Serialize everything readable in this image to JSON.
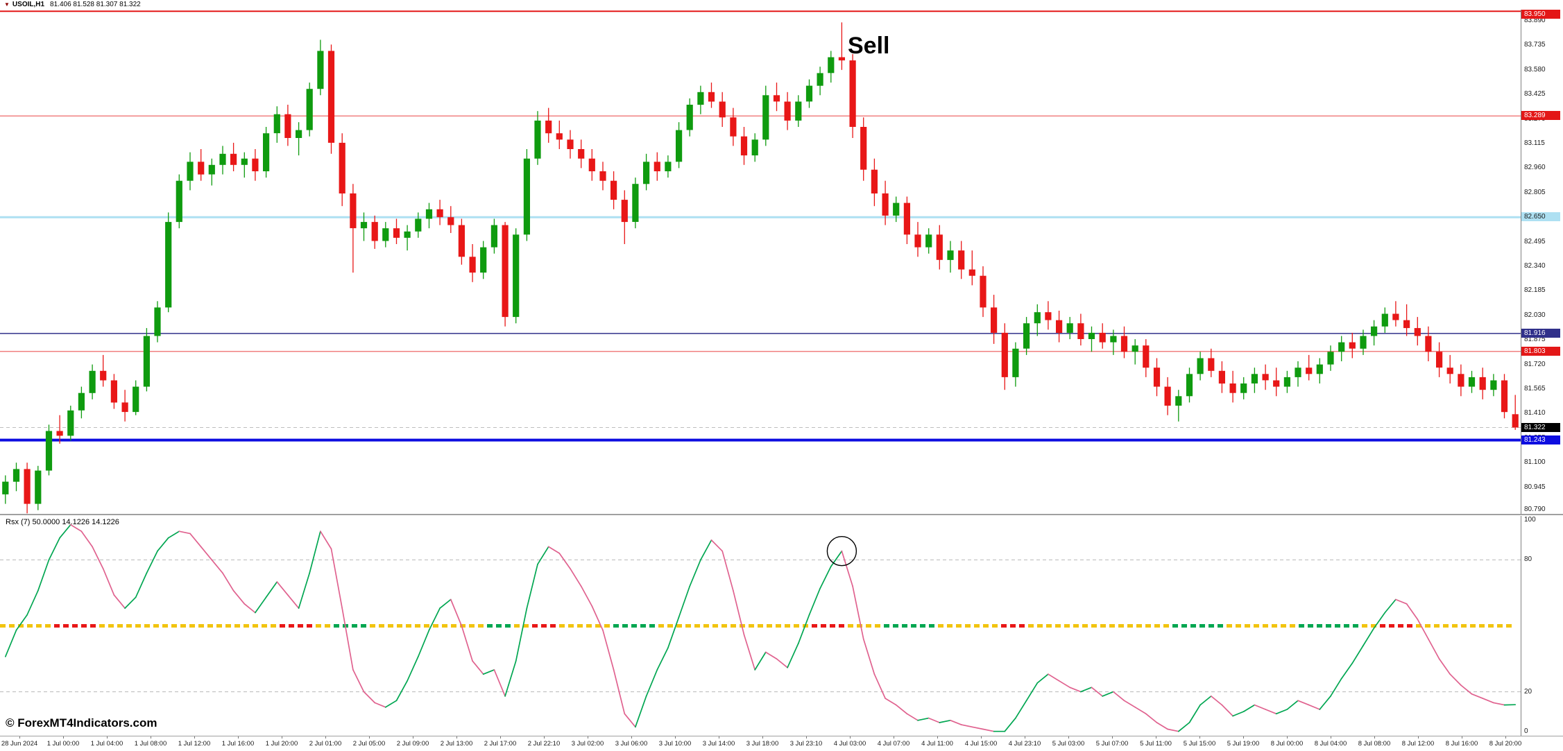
{
  "window": {
    "dropdown_icon": "▼",
    "symbol": "USOIL,H1",
    "ohlc": "81.406 81.528 81.307 81.322"
  },
  "annotations": {
    "sell": "Sell",
    "copyright": "© ForexMT4Indicators.com"
  },
  "colors": {
    "background": "#ffffff",
    "bull": "#0f9b0f",
    "bear": "#e81717",
    "separator": "#a0a0a0",
    "level_dash": "#b8b8b8",
    "axis_text": "#1a1a1a"
  },
  "chart_data": [
    {
      "id": "price",
      "type": "candlestick",
      "title": "USOIL,H1",
      "ylim": [
        80.777,
        83.96
      ],
      "y_ticks": [
        83.89,
        83.735,
        83.58,
        83.425,
        83.27,
        83.115,
        82.96,
        82.805,
        82.65,
        82.495,
        82.34,
        82.185,
        82.03,
        81.875,
        81.72,
        81.565,
        81.41,
        81.255,
        81.1,
        80.945,
        80.79
      ],
      "h_lines": [
        {
          "price": 83.95,
          "color": "#e31717",
          "width": 2,
          "label": "83.950",
          "label_bg": "#e31717",
          "label_fg": "#ffffff"
        },
        {
          "price": 83.289,
          "color": "#f08080",
          "width": 1.5,
          "label": "83.289",
          "label_bg": "#e31717",
          "label_fg": "#ffffff"
        },
        {
          "price": 82.65,
          "color": "#aee0f2",
          "width": 3,
          "label": "82.650",
          "label_bg": "#aee0f2",
          "label_fg": "#1a1a1a"
        },
        {
          "price": 81.916,
          "color": "#30308a",
          "width": 1.5,
          "label": "81.916",
          "label_bg": "#30308a",
          "label_fg": "#ffffff"
        },
        {
          "price": 81.803,
          "color": "#f08080",
          "width": 1.5,
          "label": "81.803",
          "label_bg": "#e31717",
          "label_fg": "#ffffff"
        },
        {
          "price": 81.243,
          "color": "#0d0de0",
          "width": 4,
          "label": "81.243",
          "label_bg": "#0d0de0",
          "label_fg": "#ffffff"
        }
      ],
      "current_price": {
        "value": 81.322,
        "label": "81.322",
        "label_bg": "#000000",
        "label_fg": "#ffffff"
      },
      "x_labels": [
        "28 Jun 2024",
        "1 Jul 00:00",
        "1 Jul 04:00",
        "1 Jul 08:00",
        "1 Jul 12:00",
        "1 Jul 16:00",
        "1 Jul 20:00",
        "2 Jul 01:00",
        "2 Jul 05:00",
        "2 Jul 09:00",
        "2 Jul 13:00",
        "2 Jul 17:00",
        "2 Jul 22:10",
        "3 Jul 02:00",
        "3 Jul 06:00",
        "3 Jul 10:00",
        "3 Jul 14:00",
        "3 Jul 18:00",
        "3 Jul 23:10",
        "4 Jul 03:00",
        "4 Jul 07:00",
        "4 Jul 11:00",
        "4 Jul 15:00",
        "4 Jul 23:10",
        "5 Jul 03:00",
        "5 Jul 07:00",
        "5 Jul 11:00",
        "5 Jul 15:00",
        "5 Jul 19:00",
        "8 Jul 00:00",
        "8 Jul 04:00",
        "8 Jul 08:00",
        "8 Jul 12:00",
        "8 Jul 16:00",
        "8 Jul 20:00"
      ],
      "candles": [
        [
          80.9,
          81.02,
          80.84,
          80.98
        ],
        [
          80.98,
          81.1,
          80.92,
          81.06
        ],
        [
          81.06,
          81.1,
          80.78,
          80.84
        ],
        [
          80.84,
          81.08,
          80.8,
          81.05
        ],
        [
          81.05,
          81.34,
          81.02,
          81.3
        ],
        [
          81.3,
          81.4,
          81.22,
          81.27
        ],
        [
          81.27,
          81.46,
          81.24,
          81.43
        ],
        [
          81.43,
          81.58,
          81.38,
          81.54
        ],
        [
          81.54,
          81.72,
          81.5,
          81.68
        ],
        [
          81.68,
          81.78,
          81.58,
          81.62
        ],
        [
          81.62,
          81.66,
          81.44,
          81.48
        ],
        [
          81.48,
          81.56,
          81.36,
          81.42
        ],
        [
          81.42,
          81.62,
          81.4,
          81.58
        ],
        [
          81.58,
          81.95,
          81.55,
          81.9
        ],
        [
          81.9,
          82.12,
          81.86,
          82.08
        ],
        [
          82.08,
          82.68,
          82.05,
          82.62
        ],
        [
          82.62,
          82.92,
          82.58,
          82.88
        ],
        [
          82.88,
          83.06,
          82.82,
          83.0
        ],
        [
          83.0,
          83.08,
          82.88,
          82.92
        ],
        [
          82.92,
          83.02,
          82.85,
          82.98
        ],
        [
          82.98,
          83.1,
          82.92,
          83.05
        ],
        [
          83.05,
          83.12,
          82.94,
          82.98
        ],
        [
          82.98,
          83.06,
          82.9,
          83.02
        ],
        [
          83.02,
          83.08,
          82.88,
          82.94
        ],
        [
          82.94,
          83.22,
          82.9,
          83.18
        ],
        [
          83.18,
          83.35,
          83.12,
          83.3
        ],
        [
          83.3,
          83.36,
          83.1,
          83.15
        ],
        [
          83.15,
          83.25,
          83.04,
          83.2
        ],
        [
          83.2,
          83.5,
          83.16,
          83.46
        ],
        [
          83.46,
          83.77,
          83.42,
          83.7
        ],
        [
          83.7,
          83.74,
          83.05,
          83.12
        ],
        [
          83.12,
          83.18,
          82.72,
          82.8
        ],
        [
          82.8,
          82.86,
          82.3,
          82.58
        ],
        [
          82.58,
          82.68,
          82.5,
          82.62
        ],
        [
          82.62,
          82.66,
          82.45,
          82.5
        ],
        [
          82.5,
          82.62,
          82.46,
          82.58
        ],
        [
          82.58,
          82.64,
          82.48,
          82.52
        ],
        [
          82.52,
          82.6,
          82.44,
          82.56
        ],
        [
          82.56,
          82.68,
          82.52,
          82.64
        ],
        [
          82.64,
          82.74,
          82.58,
          82.7
        ],
        [
          82.7,
          82.76,
          82.6,
          82.65
        ],
        [
          82.65,
          82.72,
          82.55,
          82.6
        ],
        [
          82.6,
          82.64,
          82.35,
          82.4
        ],
        [
          82.4,
          82.48,
          82.24,
          82.3
        ],
        [
          82.3,
          82.5,
          82.26,
          82.46
        ],
        [
          82.46,
          82.64,
          82.42,
          82.6
        ],
        [
          82.6,
          82.62,
          81.96,
          82.02
        ],
        [
          82.02,
          82.58,
          81.98,
          82.54
        ],
        [
          82.54,
          83.08,
          82.5,
          83.02
        ],
        [
          83.02,
          83.32,
          82.98,
          83.26
        ],
        [
          83.26,
          83.34,
          83.12,
          83.18
        ],
        [
          83.18,
          83.26,
          83.08,
          83.14
        ],
        [
          83.14,
          83.2,
          83.02,
          83.08
        ],
        [
          83.08,
          83.14,
          82.96,
          83.02
        ],
        [
          83.02,
          83.08,
          82.88,
          82.94
        ],
        [
          82.94,
          83.0,
          82.82,
          82.88
        ],
        [
          82.88,
          82.94,
          82.7,
          82.76
        ],
        [
          82.76,
          82.82,
          82.48,
          82.62
        ],
        [
          82.62,
          82.9,
          82.58,
          82.86
        ],
        [
          82.86,
          83.05,
          82.82,
          83.0
        ],
        [
          83.0,
          83.06,
          82.88,
          82.94
        ],
        [
          82.94,
          83.04,
          82.9,
          83.0
        ],
        [
          83.0,
          83.25,
          82.96,
          83.2
        ],
        [
          83.2,
          83.4,
          83.16,
          83.36
        ],
        [
          83.36,
          83.48,
          83.3,
          83.44
        ],
        [
          83.44,
          83.5,
          83.34,
          83.38
        ],
        [
          83.38,
          83.44,
          83.22,
          83.28
        ],
        [
          83.28,
          83.34,
          83.1,
          83.16
        ],
        [
          83.16,
          83.22,
          82.98,
          83.04
        ],
        [
          83.04,
          83.18,
          83.0,
          83.14
        ],
        [
          83.14,
          83.48,
          83.1,
          83.42
        ],
        [
          83.42,
          83.5,
          83.32,
          83.38
        ],
        [
          83.38,
          83.44,
          83.2,
          83.26
        ],
        [
          83.26,
          83.42,
          83.22,
          83.38
        ],
        [
          83.38,
          83.52,
          83.34,
          83.48
        ],
        [
          83.48,
          83.6,
          83.42,
          83.56
        ],
        [
          83.56,
          83.7,
          83.5,
          83.66
        ],
        [
          83.66,
          83.88,
          83.58,
          83.64
        ],
        [
          83.64,
          83.68,
          83.15,
          83.22
        ],
        [
          83.22,
          83.28,
          82.88,
          82.95
        ],
        [
          82.95,
          83.02,
          82.72,
          82.8
        ],
        [
          82.8,
          82.88,
          82.6,
          82.66
        ],
        [
          82.66,
          82.78,
          82.62,
          82.74
        ],
        [
          82.74,
          82.78,
          82.48,
          82.54
        ],
        [
          82.54,
          82.62,
          82.4,
          82.46
        ],
        [
          82.46,
          82.58,
          82.42,
          82.54
        ],
        [
          82.54,
          82.6,
          82.32,
          82.38
        ],
        [
          82.38,
          82.5,
          82.3,
          82.44
        ],
        [
          82.44,
          82.5,
          82.26,
          82.32
        ],
        [
          82.32,
          82.44,
          82.22,
          82.28
        ],
        [
          82.28,
          82.34,
          82.02,
          82.08
        ],
        [
          82.08,
          82.16,
          81.85,
          81.92
        ],
        [
          81.92,
          81.98,
          81.56,
          81.64
        ],
        [
          81.64,
          81.86,
          81.58,
          81.82
        ],
        [
          81.82,
          82.02,
          81.78,
          81.98
        ],
        [
          81.98,
          82.1,
          81.9,
          82.05
        ],
        [
          82.05,
          82.12,
          81.94,
          82.0
        ],
        [
          82.0,
          82.06,
          81.86,
          81.92
        ],
        [
          81.92,
          82.02,
          81.88,
          81.98
        ],
        [
          81.98,
          82.04,
          81.84,
          81.88
        ],
        [
          81.88,
          81.96,
          81.8,
          81.92
        ],
        [
          81.92,
          81.98,
          81.82,
          81.86
        ],
        [
          81.86,
          81.94,
          81.78,
          81.9
        ],
        [
          81.9,
          81.96,
          81.76,
          81.8
        ],
        [
          81.8,
          81.88,
          81.72,
          81.84
        ],
        [
          81.84,
          81.88,
          81.64,
          81.7
        ],
        [
          81.7,
          81.76,
          81.52,
          81.58
        ],
        [
          81.58,
          81.64,
          81.4,
          81.46
        ],
        [
          81.46,
          81.56,
          81.36,
          81.52
        ],
        [
          81.52,
          81.7,
          81.48,
          81.66
        ],
        [
          81.66,
          81.8,
          81.62,
          81.76
        ],
        [
          81.76,
          81.82,
          81.64,
          81.68
        ],
        [
          81.68,
          81.74,
          81.54,
          81.6
        ],
        [
          81.6,
          81.68,
          81.48,
          81.54
        ],
        [
          81.54,
          81.64,
          81.5,
          81.6
        ],
        [
          81.6,
          81.7,
          81.54,
          81.66
        ],
        [
          81.66,
          81.72,
          81.56,
          81.62
        ],
        [
          81.62,
          81.7,
          81.52,
          81.58
        ],
        [
          81.58,
          81.68,
          81.54,
          81.64
        ],
        [
          81.64,
          81.74,
          81.58,
          81.7
        ],
        [
          81.7,
          81.78,
          81.62,
          81.66
        ],
        [
          81.66,
          81.76,
          81.6,
          81.72
        ],
        [
          81.72,
          81.84,
          81.68,
          81.8
        ],
        [
          81.8,
          81.9,
          81.74,
          81.86
        ],
        [
          81.86,
          81.92,
          81.76,
          81.82
        ],
        [
          81.82,
          81.94,
          81.78,
          81.9
        ],
        [
          81.9,
          82.0,
          81.84,
          81.96
        ],
        [
          81.96,
          82.08,
          81.92,
          82.04
        ],
        [
          82.04,
          82.12,
          81.96,
          82.0
        ],
        [
          82.0,
          82.1,
          81.9,
          81.95
        ],
        [
          81.95,
          82.02,
          81.84,
          81.9
        ],
        [
          81.9,
          81.96,
          81.74,
          81.8
        ],
        [
          81.8,
          81.86,
          81.64,
          81.7
        ],
        [
          81.7,
          81.78,
          81.6,
          81.66
        ],
        [
          81.66,
          81.72,
          81.52,
          81.58
        ],
        [
          81.58,
          81.68,
          81.54,
          81.64
        ],
        [
          81.64,
          81.7,
          81.5,
          81.56
        ],
        [
          81.56,
          81.66,
          81.52,
          81.62
        ],
        [
          81.62,
          81.66,
          81.38,
          81.42
        ],
        [
          81.406,
          81.528,
          81.307,
          81.322
        ]
      ]
    },
    {
      "id": "rsx",
      "type": "line",
      "title": "Rsx (7) 50.0000 14.1226 14.1226",
      "ylim": [
        0,
        100
      ],
      "y_ticks": [
        100,
        80,
        20,
        0
      ],
      "levels_dashed": [
        80,
        20
      ],
      "mid_level": 50,
      "up_color": "#00a651",
      "down_color": "#e0628f",
      "mid_dots": {
        "default_color": "#f2c40f",
        "segments": [
          {
            "from": 0.03,
            "to": 0.064,
            "color": "#e81717"
          },
          {
            "from": 0.178,
            "to": 0.203,
            "color": "#e81717"
          },
          {
            "from": 0.219,
            "to": 0.24,
            "color": "#00a651"
          },
          {
            "from": 0.319,
            "to": 0.333,
            "color": "#00a651"
          },
          {
            "from": 0.345,
            "to": 0.365,
            "color": "#e81717"
          },
          {
            "from": 0.402,
            "to": 0.429,
            "color": "#00a651"
          },
          {
            "from": 0.532,
            "to": 0.554,
            "color": "#e81717"
          },
          {
            "from": 0.58,
            "to": 0.611,
            "color": "#00a651"
          },
          {
            "from": 0.657,
            "to": 0.671,
            "color": "#e81717"
          },
          {
            "from": 0.767,
            "to": 0.803,
            "color": "#00a651"
          },
          {
            "from": 0.853,
            "to": 0.892,
            "color": "#00a651"
          },
          {
            "from": 0.906,
            "to": 0.926,
            "color": "#e81717"
          }
        ]
      },
      "circle_annotation": {
        "index": 77,
        "value": 84
      },
      "values": [
        36,
        48,
        55,
        66,
        80,
        90,
        96,
        93,
        86,
        76,
        64,
        58,
        63,
        74,
        84,
        90,
        93,
        92,
        86,
        80,
        74,
        66,
        60,
        56,
        63,
        70,
        64,
        58,
        74,
        93,
        85,
        58,
        30,
        20,
        15,
        13,
        16,
        25,
        36,
        48,
        58,
        62,
        50,
        34,
        28,
        30,
        18,
        34,
        58,
        78,
        86,
        83,
        76,
        68,
        59,
        48,
        30,
        10,
        4,
        18,
        30,
        40,
        54,
        68,
        80,
        89,
        84,
        66,
        46,
        30,
        38,
        35,
        31,
        42,
        55,
        67,
        77,
        84,
        68,
        44,
        28,
        17,
        14,
        10,
        7,
        8,
        6,
        7,
        5,
        4,
        3,
        2,
        2,
        8,
        16,
        24,
        28,
        25,
        22,
        20,
        22,
        18,
        20,
        16,
        13,
        10,
        6,
        3,
        2,
        6,
        14,
        18,
        14,
        9,
        11,
        14,
        12,
        10,
        12,
        16,
        14,
        12,
        18,
        26,
        33,
        41,
        49,
        56,
        62,
        60,
        53,
        44,
        35,
        28,
        23,
        19,
        17,
        15,
        14,
        14.12
      ]
    }
  ]
}
